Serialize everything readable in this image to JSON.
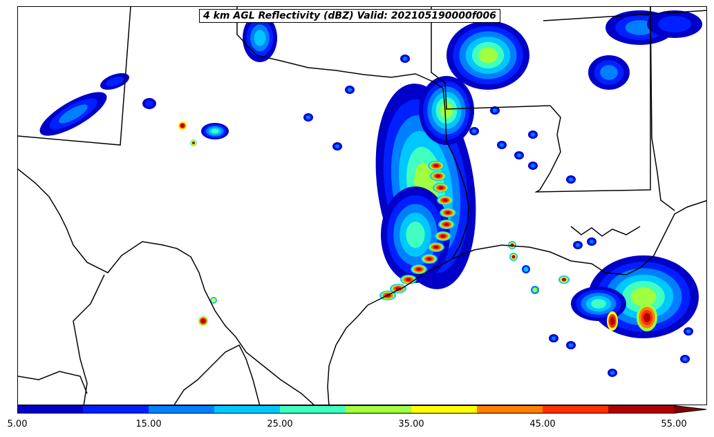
{
  "title": "4 km AGL Reflectivity (dBZ) Valid: 202105190000f006",
  "colorbar": {
    "levels": [
      5,
      10,
      15,
      20,
      25,
      30,
      35,
      40,
      45,
      50,
      55
    ],
    "colors": [
      "#0000c8",
      "#0020ff",
      "#0080ff",
      "#00c8ff",
      "#40ffc0",
      "#a0ff40",
      "#ffff00",
      "#ff8000",
      "#ff3000",
      "#b00000"
    ],
    "overflow_color": "#800000",
    "tick_labels": [
      "5.00",
      "15.00",
      "25.00",
      "35.00",
      "45.00",
      "55.00"
    ],
    "units": "dBZ"
  },
  "map": {
    "region": "Texas / Louisiana / Gulf Coast",
    "line_color": "#000000",
    "background": "#ffffff"
  }
}
